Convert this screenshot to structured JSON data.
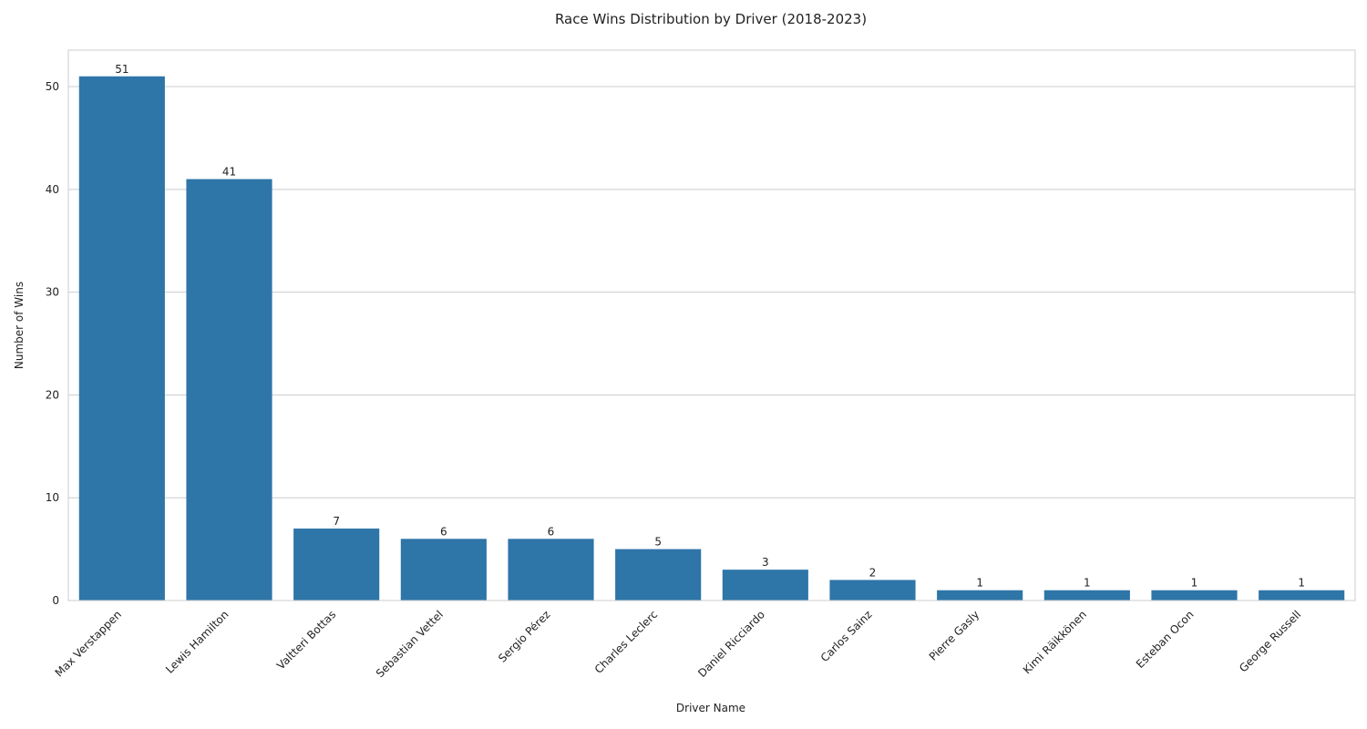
{
  "chart_data": {
    "type": "bar",
    "title": "Race Wins Distribution by Driver (2018-2023)",
    "xlabel": "Driver Name",
    "ylabel": "Number of Wins",
    "categories": [
      "Max Verstappen",
      "Lewis Hamilton",
      "Valtteri Bottas",
      "Sebastian Vettel",
      "Sergio Pérez",
      "Charles Leclerc",
      "Daniel Ricciardo",
      "Carlos Sainz",
      "Pierre Gasly",
      "Kimi Räikkönen",
      "Esteban Ocon",
      "George Russell"
    ],
    "values": [
      51,
      41,
      7,
      6,
      6,
      5,
      3,
      2,
      1,
      1,
      1,
      1
    ],
    "ylim": [
      0,
      53.55
    ],
    "yticks": [
      0,
      10,
      20,
      30,
      40,
      50
    ],
    "grid": "horizontal",
    "bar_color": "#2e75a8",
    "data_labels": true
  }
}
